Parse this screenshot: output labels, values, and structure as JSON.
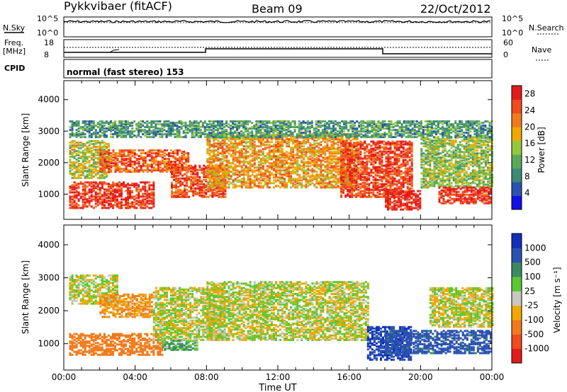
{
  "header": {
    "title": "Pykkvibaer (fitACF)",
    "beam": "Beam 09",
    "date": "22/Oct/2012"
  },
  "noise_panel": {
    "left_label": "N.Sky",
    "right_label": "N.Search",
    "ticks_left": [
      "10^5",
      "10^0"
    ],
    "ticks_right": [
      "10^5",
      "10^0"
    ]
  },
  "freq_panel": {
    "left_label_1": "Freq.",
    "left_label_2": "[MHz]",
    "right_label": "Nave",
    "ticks_left": [
      "18",
      "8"
    ],
    "ticks_right": [
      "60",
      "0"
    ]
  },
  "cpid_panel": {
    "label": "CPID",
    "text": "normal (fast stereo) 153"
  },
  "colors": {
    "power": [
      "#1010e8",
      "#2a52b0",
      "#3c8a78",
      "#5aa85a",
      "#94c83c",
      "#f0a800",
      "#f07a1a",
      "#f04a1e",
      "#e41a1a"
    ],
    "velocity": [
      "#e41a1a",
      "#f04a1e",
      "#f07a1a",
      "#f0a800",
      "#c8c8c0",
      "#5ac832",
      "#3c8a64",
      "#2a52b0",
      "#1030b8"
    ]
  },
  "chart_data": [
    {
      "type": "heatmap",
      "title": "",
      "xlabel": "",
      "ylabel": "Slant Range [km]",
      "yticks": [
        "1000",
        "2000",
        "3000",
        "4000"
      ],
      "ylim": [
        200,
        4600
      ],
      "xlim": [
        0,
        24
      ],
      "colorbar": {
        "label": "Power [dB]",
        "ticks": [
          "4",
          "8",
          "12",
          "16",
          "20",
          "24",
          "28"
        ],
        "range": [
          0,
          30
        ]
      },
      "regions": [
        {
          "t0": 0.3,
          "t1": 5.0,
          "r0": 550,
          "r1": 1400,
          "value": 27
        },
        {
          "t0": 0.3,
          "t1": 2.5,
          "r0": 1500,
          "r1": 2700,
          "value": 16
        },
        {
          "t0": 2.0,
          "t1": 7.0,
          "r0": 1700,
          "r1": 2400,
          "value": 24
        },
        {
          "t0": 6.0,
          "t1": 9.0,
          "r0": 900,
          "r1": 1900,
          "value": 25
        },
        {
          "t0": 8.0,
          "t1": 16.5,
          "r0": 1200,
          "r1": 2900,
          "value": 20
        },
        {
          "t0": 15.5,
          "t1": 19.5,
          "r0": 900,
          "r1": 2700,
          "value": 26
        },
        {
          "t0": 18.0,
          "t1": 20.0,
          "r0": 500,
          "r1": 1100,
          "value": 28
        },
        {
          "t0": 20.0,
          "t1": 24.0,
          "r0": 1200,
          "r1": 2800,
          "value": 14
        },
        {
          "t0": 21.0,
          "t1": 24.0,
          "r0": 700,
          "r1": 1200,
          "value": 27
        },
        {
          "t0": 0.3,
          "t1": 24.0,
          "r0": 2800,
          "r1": 3300,
          "value": 10
        }
      ]
    },
    {
      "type": "heatmap",
      "title": "",
      "xlabel": "Time UT",
      "ylabel": "Slant Range [km]",
      "xticks": [
        "00:00",
        "04:00",
        "08:00",
        "12:00",
        "16:00",
        "20:00",
        "00:00"
      ],
      "yticks": [
        "1000",
        "2000",
        "3000",
        "4000"
      ],
      "ylim": [
        200,
        4600
      ],
      "xlim": [
        0,
        24
      ],
      "colorbar": {
        "label": "Velocity [m s⁻¹]",
        "ticks": [
          "1000",
          "500",
          "100",
          "25",
          "-25",
          "-100",
          "-500",
          "-1000"
        ]
      },
      "regions": [
        {
          "t0": 0.3,
          "t1": 5.5,
          "r0": 650,
          "r1": 1300,
          "value": -150
        },
        {
          "t0": 0.3,
          "t1": 3.0,
          "r0": 2200,
          "r1": 3100,
          "value": 0
        },
        {
          "t0": 2.0,
          "t1": 5.0,
          "r0": 1800,
          "r1": 2500,
          "value": -60
        },
        {
          "t0": 5.0,
          "t1": 9.0,
          "r0": 1100,
          "r1": 2700,
          "value": 0
        },
        {
          "t0": 8.0,
          "t1": 17.0,
          "r0": 1100,
          "r1": 2900,
          "value": 0
        },
        {
          "t0": 17.0,
          "t1": 19.5,
          "r0": 500,
          "r1": 1500,
          "value": 700
        },
        {
          "t0": 18.0,
          "t1": 24.0,
          "r0": 700,
          "r1": 1400,
          "value": 300
        },
        {
          "t0": 20.5,
          "t1": 24.0,
          "r0": 1500,
          "r1": 2700,
          "value": 0
        },
        {
          "t0": 5.5,
          "t1": 7.5,
          "r0": 800,
          "r1": 1100,
          "value": 60
        }
      ]
    }
  ]
}
